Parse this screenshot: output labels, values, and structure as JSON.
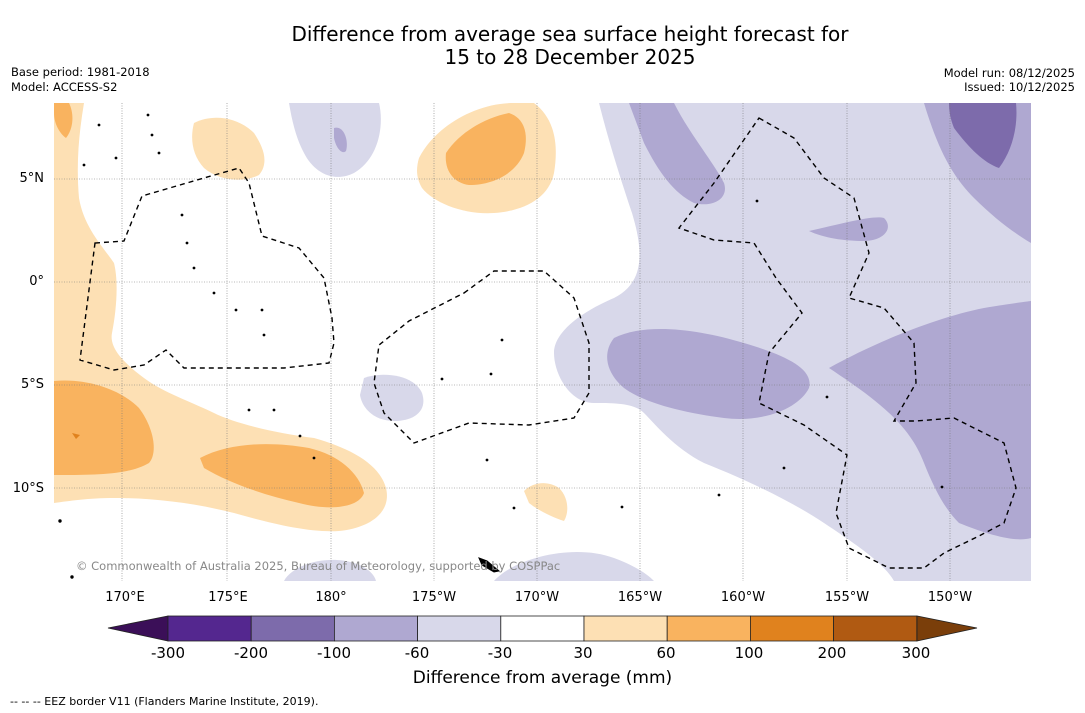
{
  "title": {
    "line1": "Difference from average sea surface height forecast for",
    "line2": "15 to 28 December 2025"
  },
  "meta_left": {
    "base_period": "Base period: 1981-2018",
    "model": "Model: ACCESS-S2"
  },
  "meta_right": {
    "model_run": "Model run: 08/12/2025",
    "issued": "Issued: 10/12/2025"
  },
  "lat_labels": [
    "5°N",
    "0°",
    "5°S",
    "10°S"
  ],
  "lon_labels": [
    "170°E",
    "175°E",
    "180°",
    "175°W",
    "170°W",
    "165°W",
    "160°W",
    "155°W",
    "150°W"
  ],
  "copyright": "© Commonwealth of Australia 2025, Bureau of Meteorology, supported by COSPPac",
  "colorbar": {
    "ticks": [
      "-300",
      "-200",
      "-100",
      "-60",
      "-30",
      "30",
      "60",
      "100",
      "200",
      "300"
    ],
    "colors": [
      "#54278f",
      "#7d6bab",
      "#afa8d1",
      "#d8d8ea",
      "#ffffff",
      "#fde0b4",
      "#f9b35f",
      "#e0821e",
      "#b05a12"
    ],
    "under_color": "#3b0f58",
    "over_color": "#7a3e0a",
    "title": "Difference from average (mm)"
  },
  "legend_note": "--  --  -- EEZ border V11 (Flanders Marine Institute, 2019)."
}
